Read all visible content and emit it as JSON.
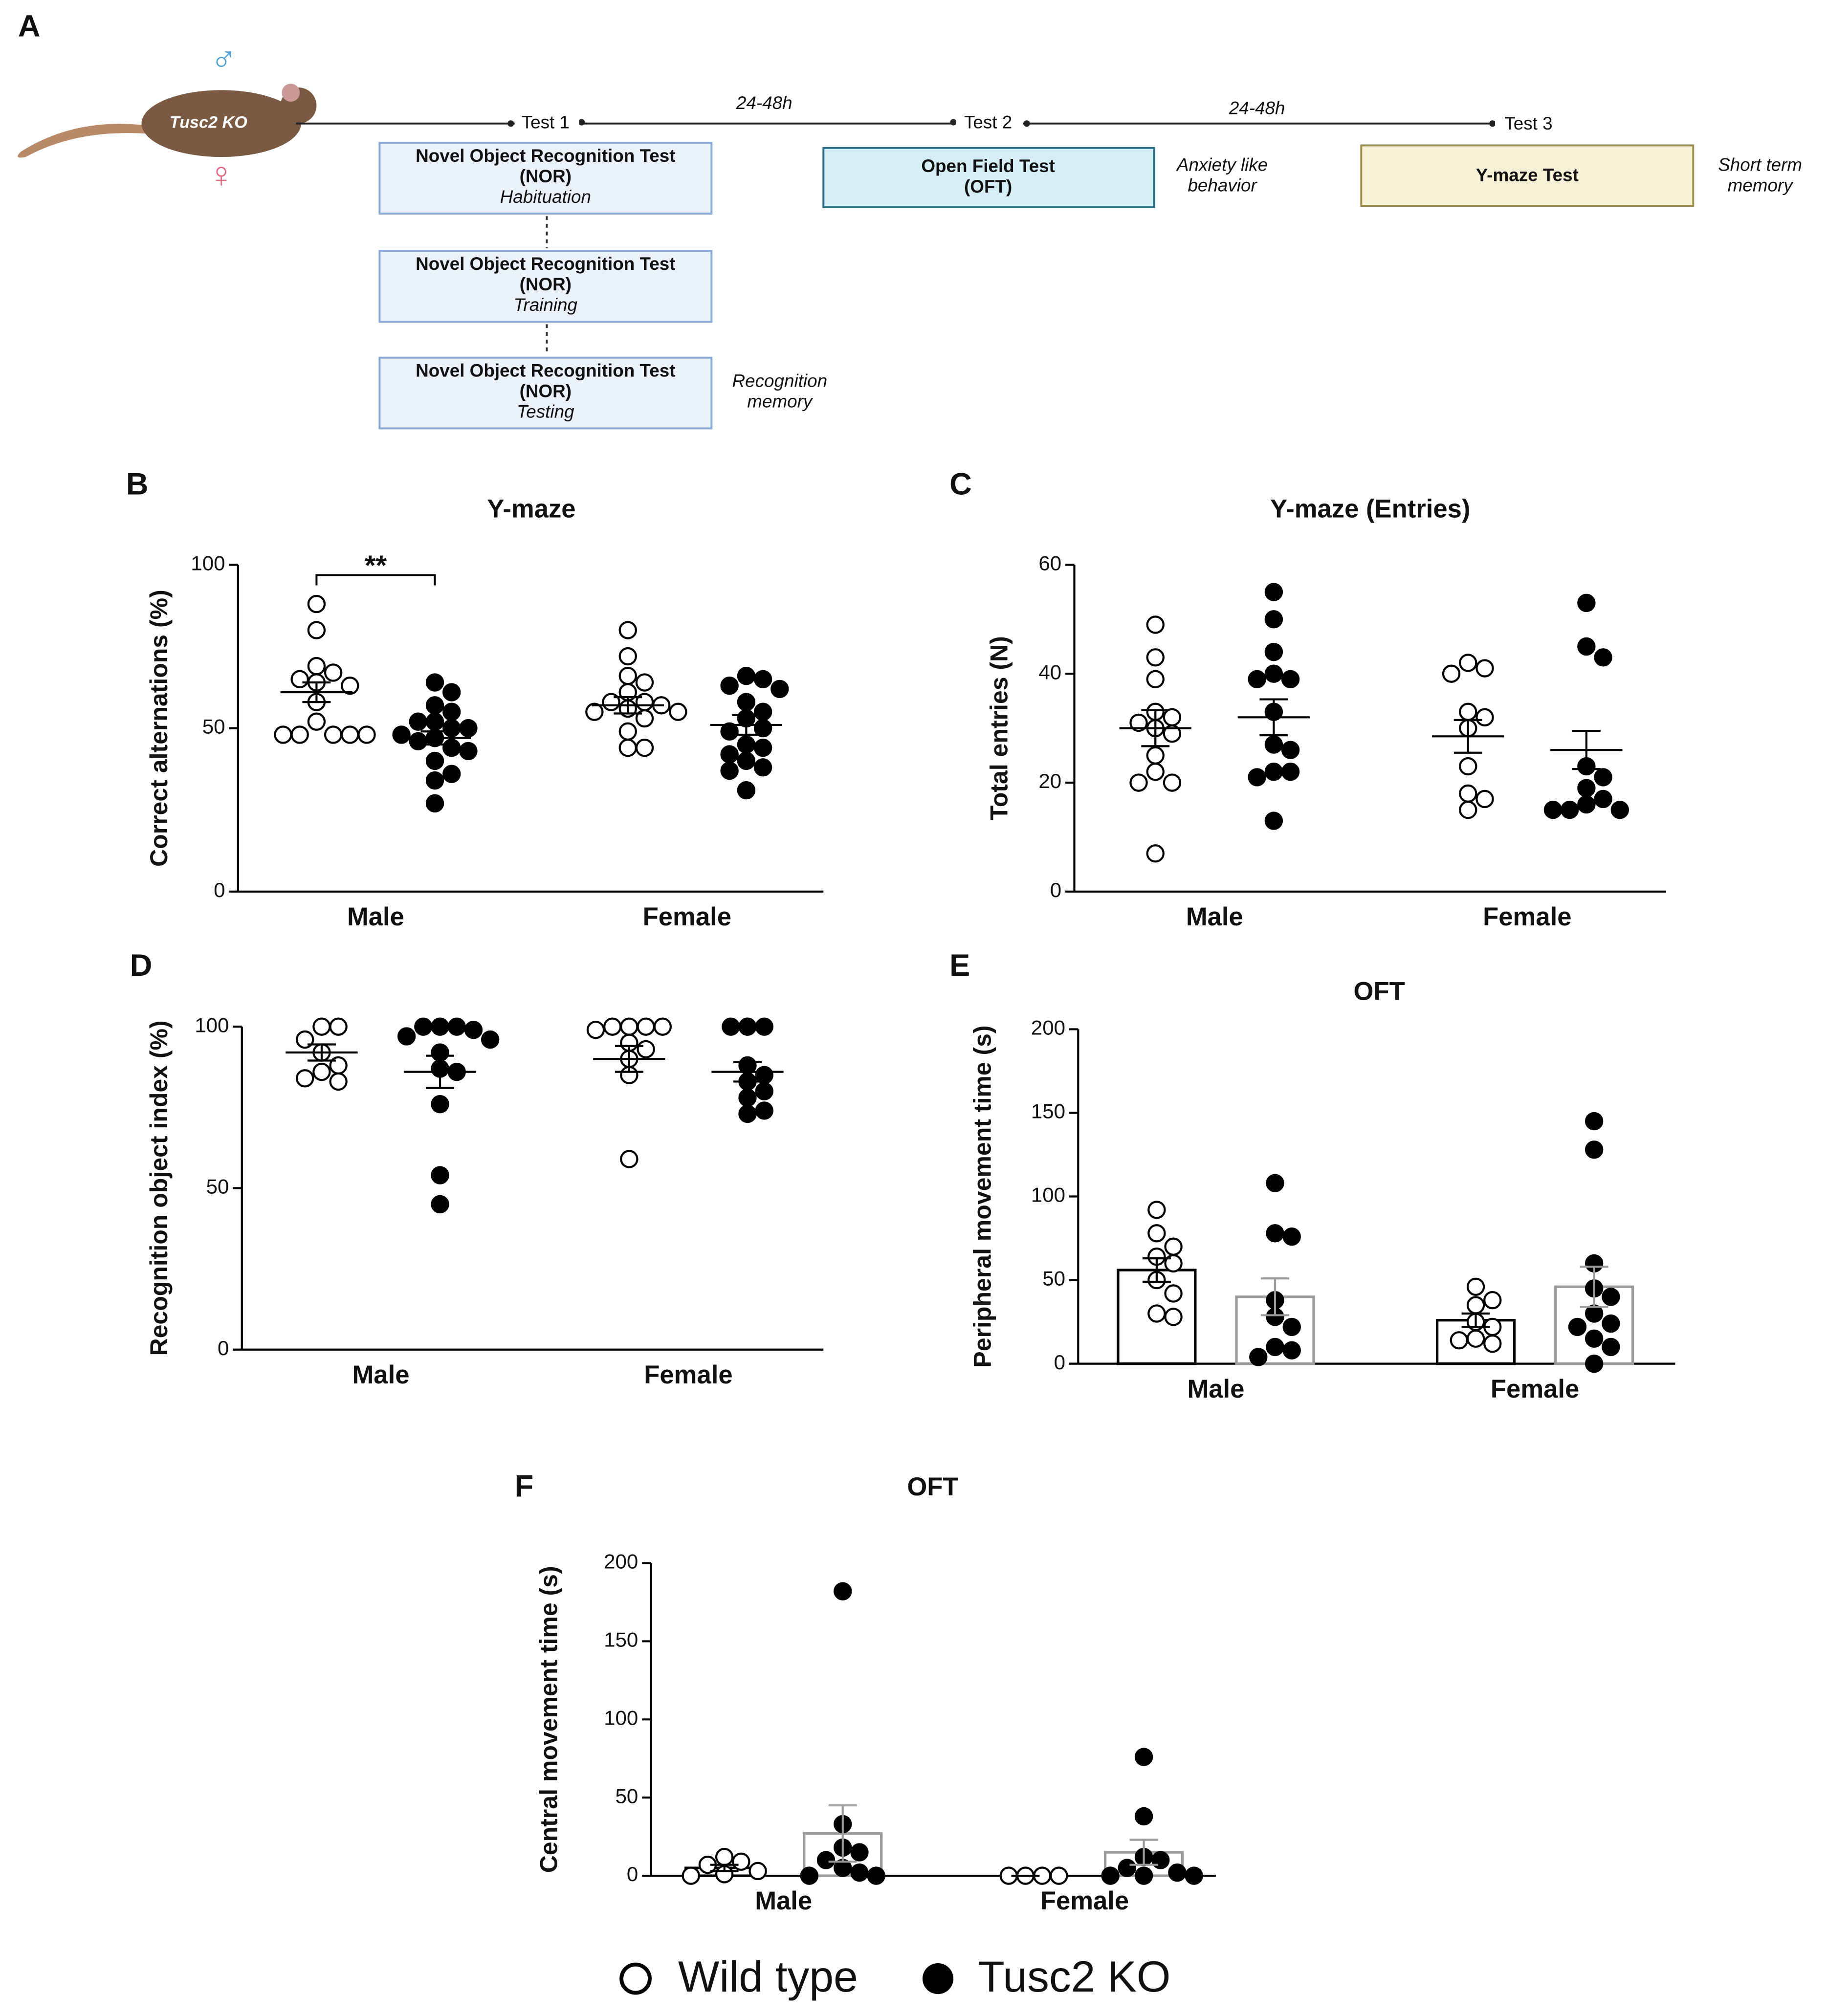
{
  "timeline": {
    "panel": "A",
    "subject": "Tusc2 KO",
    "sexes": [
      "♂",
      "♀"
    ],
    "steps": [
      "Test 1",
      "Test 2",
      "Test 3"
    ],
    "intervals": [
      "24-48h",
      "24-48h"
    ],
    "nor_boxes": [
      {
        "lines": [
          "Novel Object Recognition Test",
          "(NOR)"
        ],
        "phase": "Habituation"
      },
      {
        "lines": [
          "Novel Object Recognition Test",
          "(NOR)"
        ],
        "phase": "Training"
      },
      {
        "lines": [
          "Novel Object Recognition Test",
          "(NOR)"
        ],
        "phase": "Testing"
      }
    ],
    "nor_note": [
      "Recognition",
      "memory"
    ],
    "oft": {
      "lines": [
        "Open Field Test",
        "(OFT)"
      ],
      "note": [
        "Anxiety like",
        "behavior"
      ]
    },
    "ymaze": {
      "lines": [
        "Y-maze Test"
      ],
      "note": [
        "Short term",
        "memory"
      ]
    }
  },
  "legend": [
    {
      "name": "Wild type",
      "marker": "open"
    },
    {
      "name": "Tusc2 KO",
      "marker": "filled"
    }
  ],
  "chart_data": [
    {
      "type": "dot",
      "panel": "B",
      "title": "Y-maze",
      "ylabel": "Correct alternations (%)",
      "categories": [
        "Male",
        "Female"
      ],
      "ylim": [
        0,
        100
      ],
      "yticks": [
        0,
        50,
        100
      ],
      "annotations": [
        {
          "text": "**",
          "category": 0
        }
      ],
      "series": [
        {
          "values": [
            [
              88,
              80,
              69,
              67,
              65,
              64,
              63,
              58,
              52,
              48,
              48,
              48,
              48,
              48
            ],
            [
              80,
              72,
              66,
              64,
              61,
              58,
              58,
              57,
              56,
              55,
              55,
              53,
              49,
              44,
              44
            ]
          ],
          "mean": [
            61,
            57
          ],
          "sem": [
            3,
            2.5
          ]
        },
        {
          "values": [
            [
              64,
              61,
              57,
              55,
              52,
              52,
              50,
              50,
              48,
              47,
              46,
              44,
              43,
              40,
              36,
              34,
              27
            ],
            [
              66,
              65,
              63,
              62,
              58,
              55,
              53,
              50,
              49,
              45,
              44,
              42,
              40,
              38,
              37,
              31
            ]
          ],
          "mean": [
            47,
            51
          ],
          "sem": [
            2,
            3
          ]
        }
      ]
    },
    {
      "type": "dot",
      "panel": "C",
      "title": "Y-maze (Entries)",
      "ylabel": "Total entries (N)",
      "categories": [
        "Male",
        "Female"
      ],
      "ylim": [
        0,
        60
      ],
      "yticks": [
        0,
        20,
        40,
        60
      ],
      "series": [
        {
          "values": [
            [
              49,
              43,
              39,
              33,
              32,
              31,
              30,
              29,
              25,
              22,
              20,
              20,
              7
            ],
            [
              42,
              41,
              40,
              33,
              32,
              30,
              23,
              18,
              17,
              15
            ]
          ],
          "mean": [
            30,
            28.5
          ],
          "sem": [
            3.3,
            3
          ]
        },
        {
          "values": [
            [
              55,
              50,
              44,
              40,
              39,
              39,
              33,
              27,
              26,
              22,
              22,
              21,
              13
            ],
            [
              53,
              45,
              43,
              23,
              21,
              19,
              17,
              16,
              15,
              15,
              15
            ]
          ],
          "mean": [
            32,
            26
          ],
          "sem": [
            3.3,
            3.5
          ]
        }
      ]
    },
    {
      "type": "dot",
      "panel": "D",
      "ylabel": "Recognition object index (%)",
      "categories": [
        "Male",
        "Female"
      ],
      "ylim": [
        0,
        100
      ],
      "yticks": [
        0,
        50,
        100
      ],
      "series": [
        {
          "values": [
            [
              100,
              100,
              96,
              92,
              88,
              86,
              84,
              83
            ],
            [
              100,
              100,
              100,
              100,
              99,
              95,
              93,
              90,
              85,
              59
            ]
          ],
          "mean": [
            92,
            90
          ],
          "sem": [
            2.5,
            4
          ]
        },
        {
          "values": [
            [
              100,
              100,
              100,
              99,
              97,
              96,
              92,
              87,
              86,
              76,
              54,
              45
            ],
            [
              100,
              100,
              100,
              88,
              85,
              83,
              80,
              78,
              74,
              73
            ]
          ],
          "mean": [
            86,
            86
          ],
          "sem": [
            5,
            3
          ]
        }
      ]
    },
    {
      "type": "bar_dot",
      "panel": "E",
      "title": "OFT",
      "ylabel": "Peripheral movement time (s)",
      "categories": [
        "Male",
        "Female"
      ],
      "ylim": [
        0,
        200
      ],
      "yticks": [
        0,
        50,
        100,
        150,
        200
      ],
      "series": [
        {
          "values": [
            [
              92,
              78,
              70,
              64,
              60,
              50,
              42,
              30,
              28
            ],
            [
              46,
              38,
              35,
              25,
              22,
              15,
              14,
              12
            ]
          ],
          "mean": [
            56,
            26
          ],
          "sem": [
            7,
            4
          ],
          "bar_edge": "#000000"
        },
        {
          "values": [
            [
              108,
              78,
              76,
              38,
              28,
              22,
              10,
              8,
              4
            ],
            [
              145,
              128,
              60,
              45,
              40,
              30,
              24,
              22,
              15,
              10,
              0
            ]
          ],
          "mean": [
            40,
            46
          ],
          "sem": [
            11,
            12
          ],
          "bar_edge": "#9a9a9a"
        }
      ]
    },
    {
      "type": "bar_dot",
      "panel": "F",
      "title": "OFT",
      "ylabel": "Central movement time (s)",
      "categories": [
        "Male",
        "Female"
      ],
      "ylim": [
        0,
        200
      ],
      "yticks": [
        0,
        50,
        100,
        150,
        200
      ],
      "series": [
        {
          "values": [
            [
              12,
              9,
              7,
              3,
              1,
              0
            ],
            [
              0,
              0,
              0,
              0
            ]
          ],
          "mean": [
            5,
            0
          ],
          "sem": [
            2,
            0
          ],
          "bar_edge": "#000000"
        },
        {
          "values": [
            [
              182,
              33,
              18,
              15,
              10,
              5,
              2,
              0,
              0
            ],
            [
              76,
              38,
              12,
              10,
              5,
              2,
              0,
              0,
              0
            ]
          ],
          "mean": [
            27,
            15
          ],
          "sem": [
            18,
            8
          ],
          "bar_edge": "#9a9a9a"
        }
      ]
    }
  ]
}
